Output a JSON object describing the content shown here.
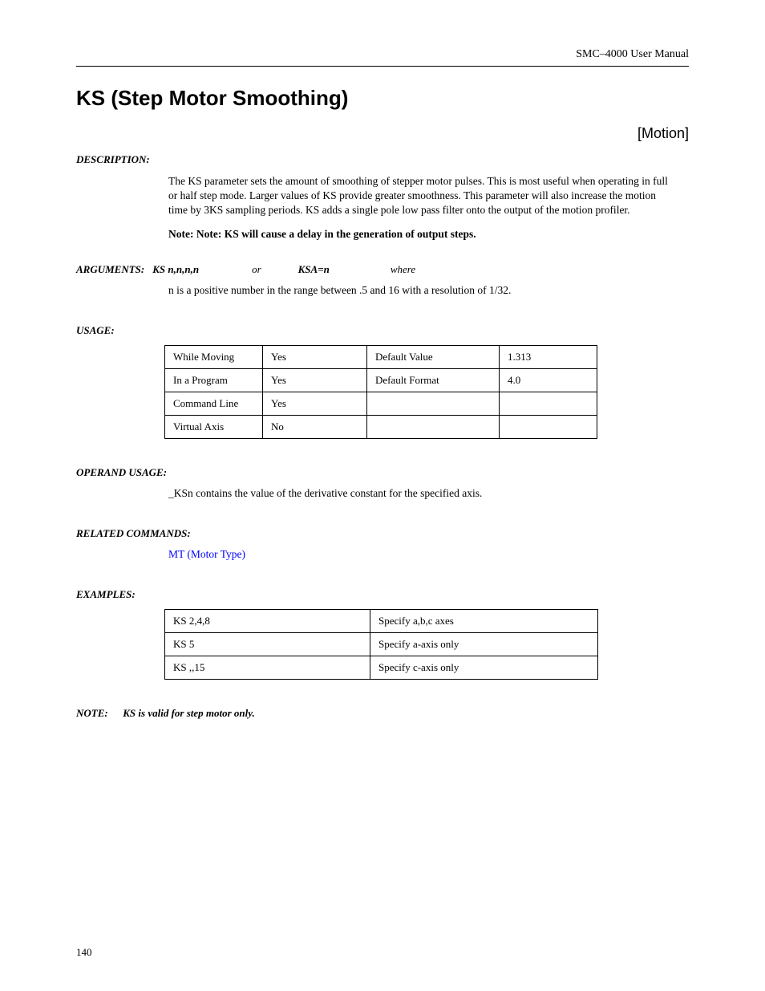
{
  "header": {
    "manual": "SMC–4000 User Manual"
  },
  "title": "KS (Step Motor Smoothing)",
  "category": "[Motion]",
  "description": {
    "label": "DESCRIPTION:",
    "text": "The KS parameter sets the amount of smoothing of stepper motor pulses. This is most useful when operating in full or half step mode. Larger values of KS provide greater smoothness. This parameter will also increase the motion time by 3KS sampling periods. KS adds a single pole low pass filter onto the output of the motion profiler.",
    "note": "Note:  Note: KS will cause a delay in the generation of output steps."
  },
  "arguments": {
    "label": "ARGUMENTS:",
    "syntax": "KS n,n,n,n",
    "or": "or",
    "alt": "KSA=n",
    "where": "where",
    "desc": "n is a positive number in the range between .5 and 16 with a resolution of 1/32."
  },
  "usage": {
    "label": "USAGE:",
    "rows": [
      [
        "While Moving",
        "Yes",
        "Default Value",
        "1.313"
      ],
      [
        "In a Program",
        "Yes",
        "Default Format",
        "4.0"
      ],
      [
        "Command Line",
        "Yes",
        "",
        ""
      ],
      [
        "Virtual Axis",
        "No",
        "",
        ""
      ]
    ]
  },
  "operand": {
    "label": "OPERAND USAGE:",
    "text": "_KSn contains the value of the derivative constant for the specified axis."
  },
  "related": {
    "label": "RELATED COMMANDS:",
    "link": "MT (Motor Type)"
  },
  "examples": {
    "label": "EXAMPLES:",
    "rows": [
      [
        "KS 2,4,8",
        "Specify a,b,c axes"
      ],
      [
        "KS 5",
        "Specify a-axis only"
      ],
      [
        "KS ,,15",
        "Specify c-axis only"
      ]
    ]
  },
  "footnote": {
    "label": "NOTE:",
    "text": "KS is valid for step motor only."
  },
  "pageNumber": "140"
}
